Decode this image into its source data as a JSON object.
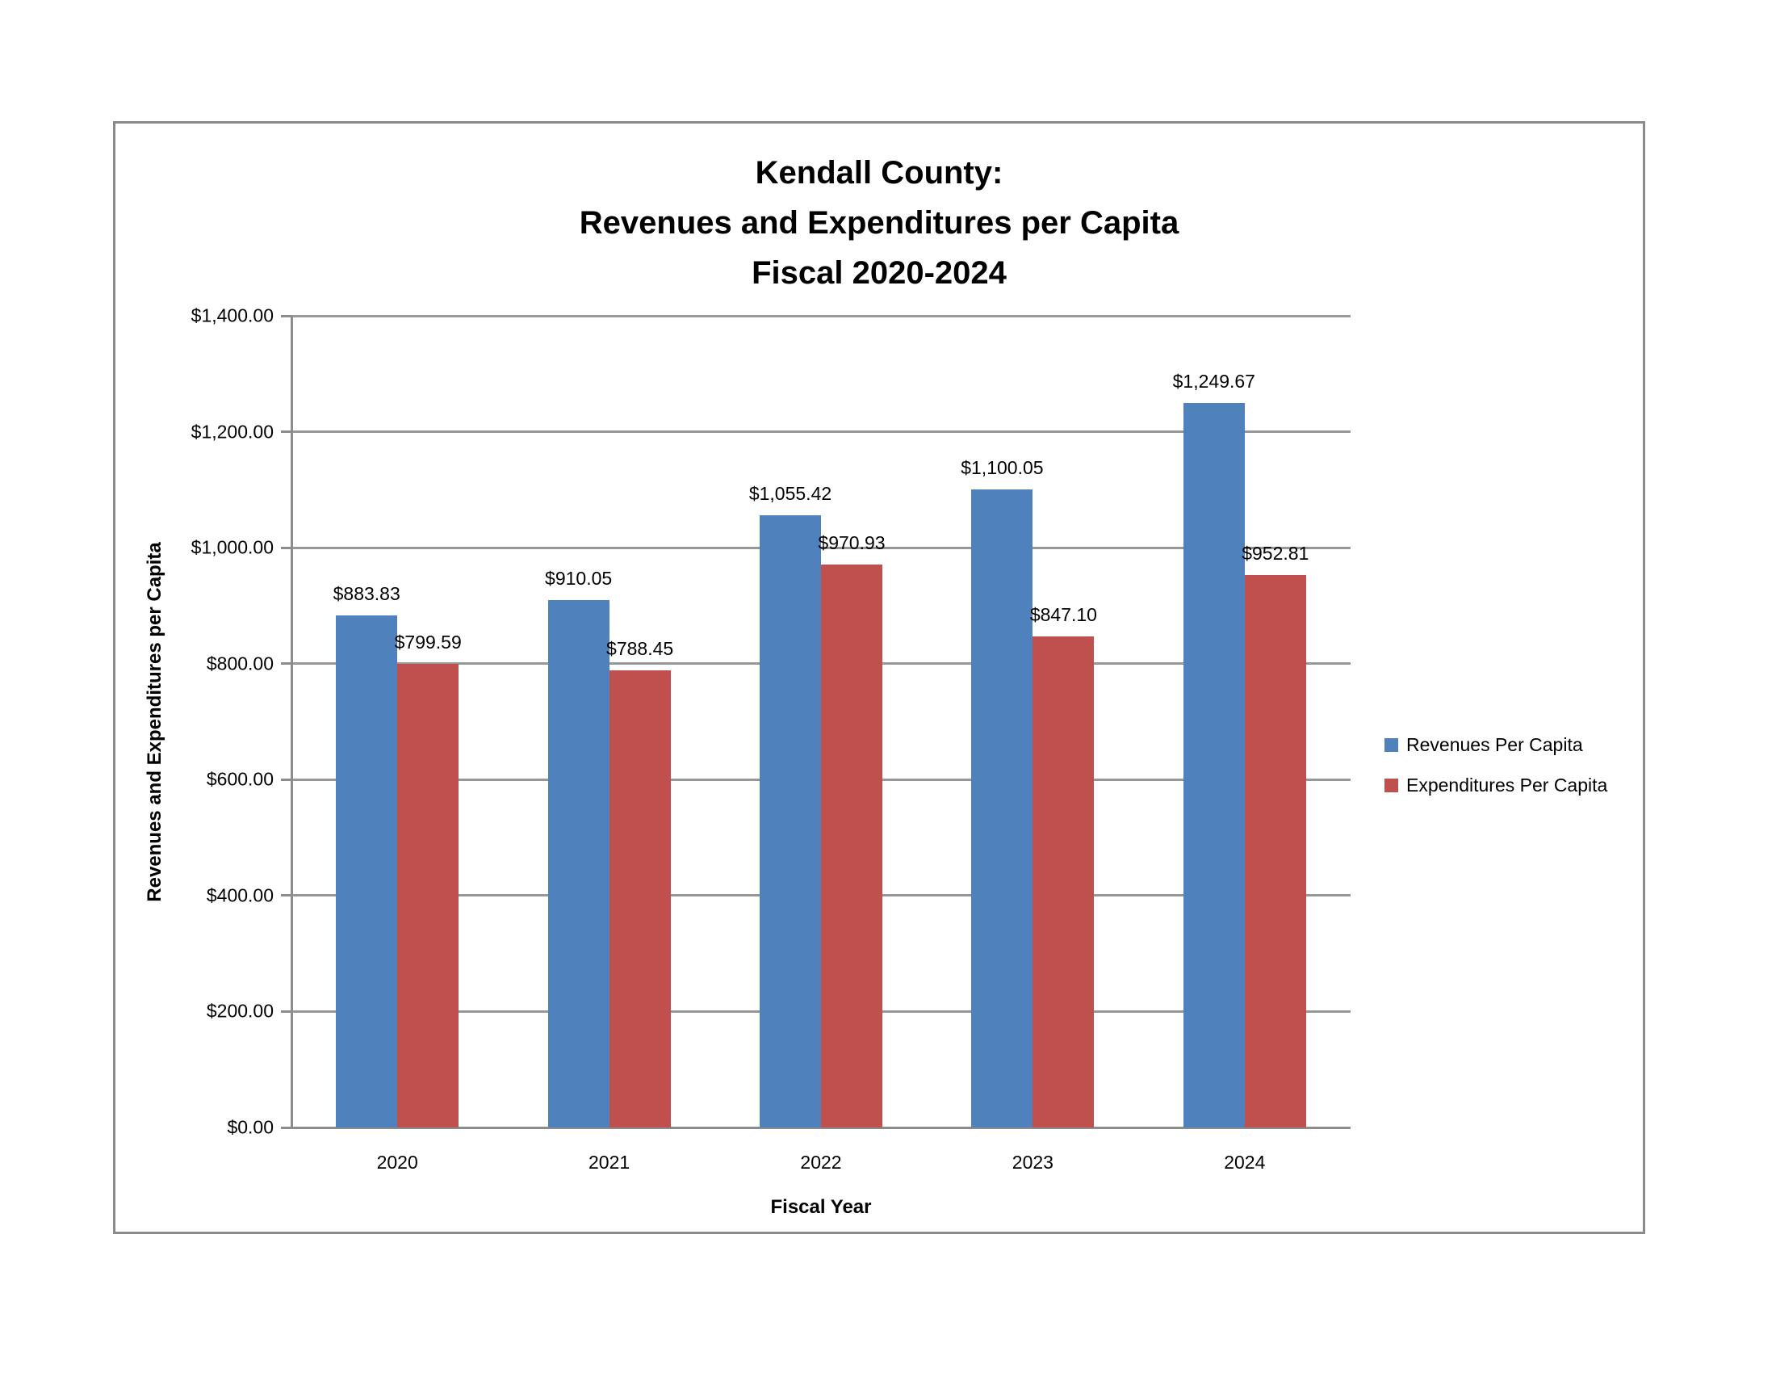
{
  "chart_data": {
    "type": "bar",
    "title_lines": [
      "Kendall County:",
      "Revenues and Expenditures per Capita",
      "Fiscal 2020-2024"
    ],
    "categories": [
      "2020",
      "2021",
      "2022",
      "2023",
      "2024"
    ],
    "series": [
      {
        "name": "Revenues Per Capita",
        "key": "revenues",
        "color": "#4F81BD",
        "values": [
          883.83,
          910.05,
          1055.42,
          1100.05,
          1249.67
        ],
        "labels": [
          "$883.83",
          "$910.05",
          "$1,055.42",
          "$1,100.05",
          "$1,249.67"
        ]
      },
      {
        "name": "Expenditures Per Capita",
        "key": "expenditures",
        "color": "#C0504D",
        "values": [
          799.59,
          788.45,
          970.93,
          847.1,
          952.81
        ],
        "labels": [
          "$799.59",
          "$788.45",
          "$970.93",
          "$847.10",
          "$952.81"
        ]
      }
    ],
    "xlabel": "Fiscal Year",
    "ylabel": "Revenues and Expenditures per Capita",
    "ylim": [
      0,
      1400
    ],
    "ytick_step": 200,
    "ytick_labels": [
      "$0.00",
      "$200.00",
      "$400.00",
      "$600.00",
      "$800.00",
      "$1,000.00",
      "$1,200.00",
      "$1,400.00"
    ],
    "grid": true,
    "legend_position": "right",
    "colors": {
      "gridline": "#979797",
      "axis": "#8c8c8c",
      "frame_border": "#8a8a8a",
      "text": "#000000"
    }
  }
}
